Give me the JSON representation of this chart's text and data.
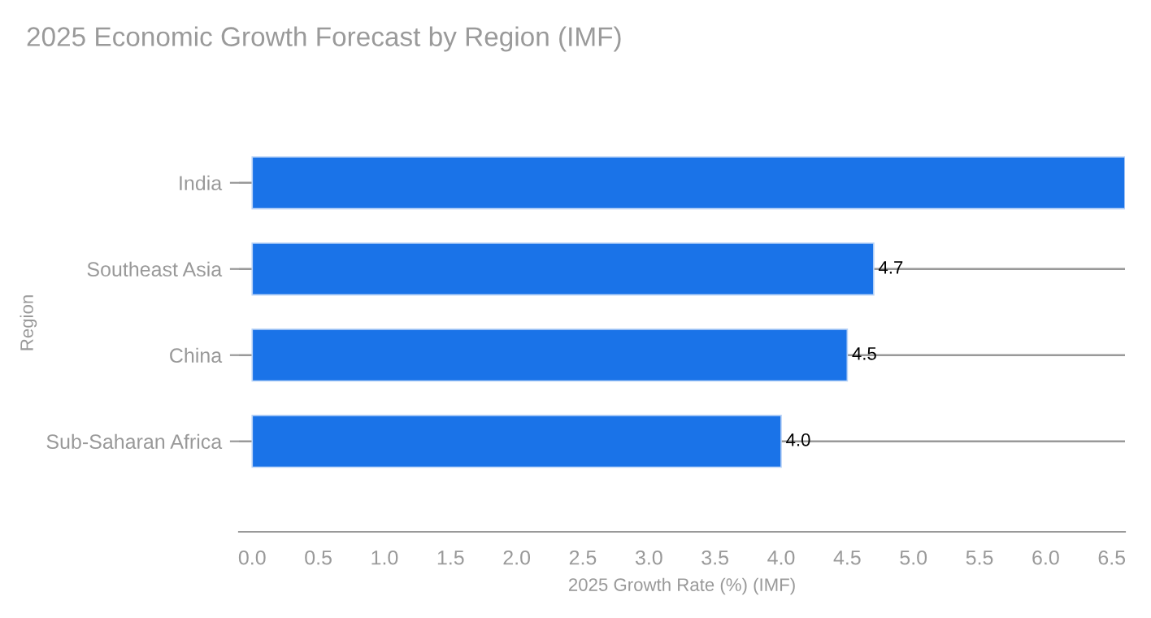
{
  "chart_data": {
    "type": "bar",
    "orientation": "horizontal",
    "title": "2025 Economic Growth Forecast by Region (IMF)",
    "xlabel": "2025 Growth Rate (%) (IMF)",
    "ylabel": "Region",
    "categories": [
      "India",
      "Southeast Asia",
      "China",
      "Sub-Saharan Africa"
    ],
    "values": [
      6.6,
      4.7,
      4.5,
      4.0
    ],
    "color": "#1a73e8",
    "value_labels": [
      null,
      "4.7",
      "4.5",
      "4.0"
    ],
    "xlim": [
      -0.1,
      6.6
    ],
    "xticks": [
      {
        "value": 0,
        "label": "0.0"
      },
      0.5,
      {
        "value": 1,
        "label": "1.0"
      },
      1.5,
      {
        "value": 2,
        "label": "2.0"
      },
      2.5,
      {
        "value": 3,
        "label": "3.0"
      },
      3.5,
      {
        "value": 4,
        "label": "4.0"
      },
      4.5,
      {
        "value": 5,
        "label": "5.0"
      },
      5.5,
      {
        "value": 6,
        "label": "6.0"
      },
      6.5
    ],
    "grid": "y",
    "legend": false
  }
}
